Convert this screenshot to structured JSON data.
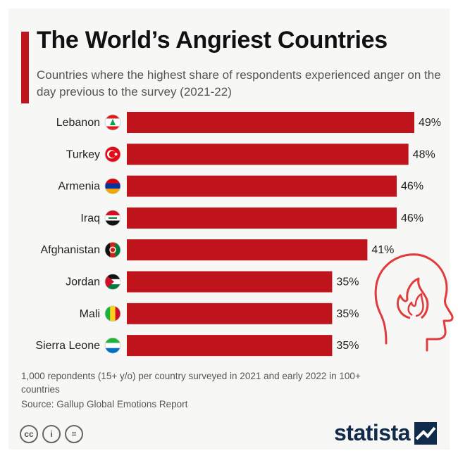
{
  "header": {
    "title": "The World’s Angriest Countries",
    "subtitle": "Countries where the highest share of respondents experienced anger on the day previous to the survey (2021-22)"
  },
  "chart_data": {
    "type": "bar",
    "orientation": "horizontal",
    "categories": [
      "Lebanon",
      "Turkey",
      "Armenia",
      "Iraq",
      "Afghanistan",
      "Jordan",
      "Mali",
      "Sierra Leone"
    ],
    "values": [
      49,
      48,
      46,
      46,
      41,
      35,
      35,
      35
    ],
    "value_labels": [
      "49%",
      "48%",
      "46%",
      "46%",
      "41%",
      "35%",
      "35%",
      "35%"
    ],
    "unit": "%",
    "xlim": [
      0,
      49
    ],
    "bar_color": "#c0141d",
    "grid": false
  },
  "footer": {
    "note": "1,000 repondents (15+ y/o) per country surveyed in 2021 and early 2022 in 100+ countries",
    "source": "Source: Gallup Global Emotions Report",
    "license_icons": [
      "cc-icon",
      "attribution-icon",
      "no-derivatives-icon"
    ],
    "brand": "statista"
  },
  "colors": {
    "accent": "#c0141d",
    "brand": "#0f2a4a",
    "background": "#f7f7f5"
  },
  "flags": [
    "lebanon-flag-icon",
    "turkey-flag-icon",
    "armenia-flag-icon",
    "iraq-flag-icon",
    "afghanistan-flag-icon",
    "jordan-flag-icon",
    "mali-flag-icon",
    "sierra-leone-flag-icon"
  ]
}
